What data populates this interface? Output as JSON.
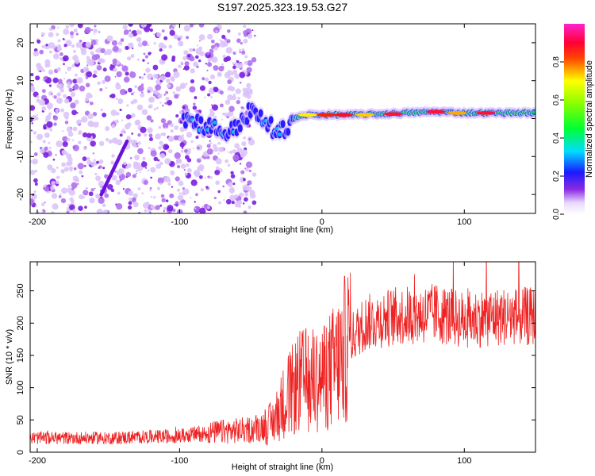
{
  "title": "S197.2025.323.19.53.G27",
  "colors": {
    "snr_line": "#ee2222",
    "frame": "#000000",
    "dots": "#8a2be2"
  },
  "chart_data": [
    {
      "type": "heatmap",
      "name": "spectrogram",
      "xlabel": "Height of straight line (km)",
      "ylabel": "Frequency (Hz)",
      "xlim": [
        -205,
        150
      ],
      "ylim": [
        -25,
        25
      ],
      "xticks": [
        -200,
        -100,
        0,
        100
      ],
      "yticks": [
        -20,
        -10,
        0,
        10,
        20
      ],
      "ridge": {
        "x": [
          -95,
          -80,
          -65,
          -50,
          -40,
          -30,
          -20,
          -10,
          0,
          20,
          40,
          60,
          80,
          100,
          120,
          150
        ],
        "freq": [
          0,
          -2,
          -4,
          2,
          -1,
          -4,
          0,
          1,
          1,
          1,
          1.2,
          1.5,
          1.8,
          1.5,
          1.5,
          1.5
        ]
      },
      "colorbar": {
        "label": "Normalized spectral amplitude",
        "range": [
          0,
          1
        ],
        "ticks": [
          "0.0",
          "0.2",
          "0.4",
          "0.6",
          "0.8"
        ]
      }
    },
    {
      "type": "line",
      "name": "snr",
      "xlabel": "Height of straight line (km)",
      "ylabel": "SNR (10 * v/v)",
      "xlim": [
        -205,
        150
      ],
      "ylim": [
        0,
        295
      ],
      "xticks": [
        -200,
        -100,
        0,
        100
      ],
      "yticks": [
        0,
        50,
        100,
        150,
        200,
        250
      ],
      "trend": {
        "x": [
          -205,
          -150,
          -100,
          -80,
          -50,
          -35,
          -25,
          -15,
          0,
          10,
          20,
          30,
          50,
          80,
          100,
          120,
          150
        ],
        "y": [
          22,
          22,
          25,
          30,
          35,
          45,
          85,
          110,
          115,
          135,
          175,
          200,
          210,
          215,
          205,
          210,
          210
        ]
      }
    }
  ]
}
